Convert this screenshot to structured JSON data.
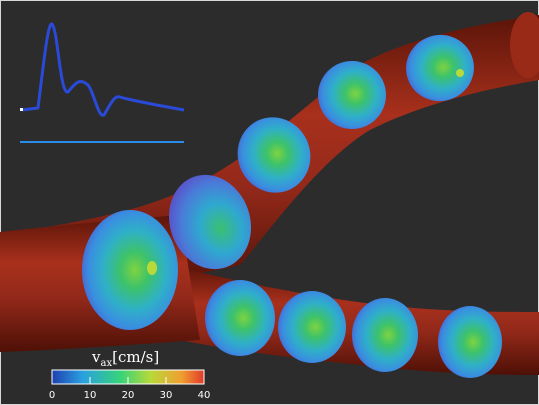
{
  "colorbar": {
    "label_main": "v",
    "label_sub": "ax",
    "label_unit": "[cm/s]",
    "ticks": [
      "0",
      "10",
      "20",
      "30",
      "40"
    ],
    "colors": [
      "#1f3fb0",
      "#2aa0e0",
      "#36d37a",
      "#b8d93a",
      "#f0a030",
      "#e03a2a"
    ]
  },
  "colors": {
    "background": "#2c2c2c",
    "vessel": "#8a2618",
    "waveform_line": "#2a4ad8",
    "baseline_line": "#2a8ce8"
  }
}
